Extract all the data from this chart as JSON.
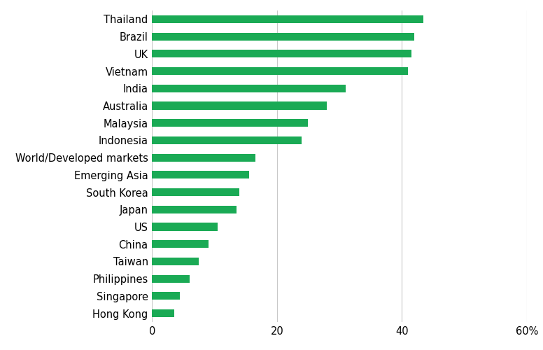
{
  "categories": [
    "Hong Kong",
    "Singapore",
    "Philippines",
    "Taiwan",
    "China",
    "US",
    "Japan",
    "South Korea",
    "Emerging Asia",
    "World/Developed markets",
    "Indonesia",
    "Malaysia",
    "Australia",
    "India",
    "Vietnam",
    "UK",
    "Brazil",
    "Thailand"
  ],
  "values": [
    3.5,
    4.5,
    6.0,
    7.5,
    9.0,
    10.5,
    13.5,
    14.0,
    15.5,
    16.5,
    24.0,
    25.0,
    28.0,
    31.0,
    41.0,
    41.5,
    42.0,
    43.5
  ],
  "bar_color": "#1aaa55",
  "background_color": "#ffffff",
  "xlim": [
    0,
    60
  ],
  "xticks": [
    0,
    20,
    40,
    60
  ],
  "xticklabels": [
    "0",
    "20",
    "40",
    "60%"
  ],
  "grid_color": "#c8c8c8",
  "bar_height": 0.45,
  "label_fontsize": 10.5,
  "tick_fontsize": 10.5
}
